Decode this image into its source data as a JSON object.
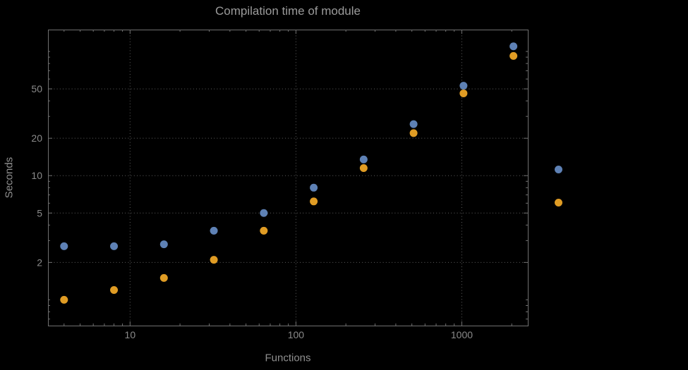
{
  "title": "Compilation time of module",
  "colors": {
    "background": "#000000",
    "title": "#9b9b9b",
    "axis_text": "#8f8f8f",
    "tick_text": "#8a8a8a",
    "grid": "#5f5f5f",
    "frame": "#707070",
    "series1": "#5e81b5",
    "series2": "#e09c24"
  },
  "chart_data": {
    "type": "scatter",
    "title": "Compilation time of module",
    "xlabel": "Functions",
    "ylabel": "Seconds",
    "xscale": "log",
    "yscale": "log",
    "xlim": [
      3.2,
      2500
    ],
    "ylim": [
      0.62,
      150
    ],
    "x_ticks": [
      10,
      100,
      1000
    ],
    "x_tick_labels": [
      "10",
      "100",
      "1000"
    ],
    "y_ticks": [
      2,
      5,
      10,
      20,
      50
    ],
    "y_tick_labels": [
      "2",
      "5",
      "10",
      "20",
      "50"
    ],
    "grid": "dotted",
    "legend_position": "right-outside",
    "x": [
      4,
      8,
      16,
      32,
      64,
      128,
      256,
      512,
      1024,
      2048
    ],
    "series": [
      {
        "name": "series-1",
        "color": "#5e81b5",
        "marker": "circle",
        "values": [
          2.7,
          2.7,
          2.8,
          3.6,
          5.0,
          8.0,
          13.5,
          26,
          53,
          110
        ]
      },
      {
        "name": "series-2",
        "color": "#e09c24",
        "marker": "circle",
        "values": [
          1.0,
          1.2,
          1.5,
          2.1,
          3.6,
          6.2,
          11.5,
          22,
          46,
          92
        ]
      }
    ]
  }
}
